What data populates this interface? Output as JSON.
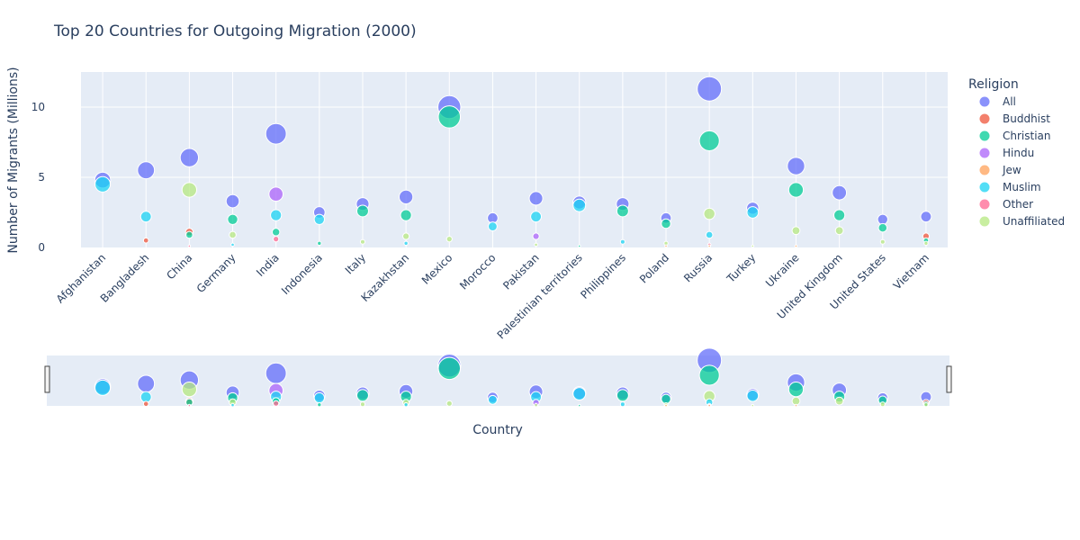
{
  "chart_data": {
    "type": "scatter",
    "title": "Top 20 Countries for Outgoing Migration (2000)",
    "xlabel": "Country",
    "ylabel": "Number of Migrants (Millions)",
    "ylim": [
      0,
      12.5
    ],
    "yticks": [
      0,
      5,
      10
    ],
    "grid": true,
    "legend": {
      "title": "Religion",
      "placement": "right"
    },
    "rangeslider": true,
    "categories": [
      "Afghanistan",
      "Bangladesh",
      "China",
      "Germany",
      "India",
      "Indonesia",
      "Italy",
      "Kazakhstan",
      "Mexico",
      "Morocco",
      "Pakistan",
      "Palestinian territories",
      "Philippines",
      "Poland",
      "Russia",
      "Turkey",
      "Ukraine",
      "United Kingdom",
      "United States",
      "Vietnam"
    ],
    "series": [
      {
        "name": "All",
        "color": "#636efa",
        "values": [
          4.8,
          5.5,
          6.4,
          3.3,
          8.1,
          2.5,
          3.1,
          3.6,
          10.0,
          2.1,
          3.5,
          3.2,
          3.1,
          2.1,
          11.3,
          2.8,
          5.8,
          3.9,
          2.0,
          2.2
        ]
      },
      {
        "name": "Buddhist",
        "color": "#EF553B",
        "values": [
          0,
          0.5,
          1.1,
          0,
          0,
          0,
          0,
          0,
          0,
          0,
          0,
          0,
          0,
          0,
          0,
          0,
          0,
          0,
          0,
          0.8
        ]
      },
      {
        "name": "Christian",
        "color": "#00cc96",
        "values": [
          0,
          0,
          0.9,
          2.0,
          1.1,
          0.3,
          2.6,
          2.3,
          9.3,
          0,
          0,
          0.1,
          2.6,
          1.7,
          7.6,
          0,
          4.1,
          2.3,
          1.4,
          0.5
        ]
      },
      {
        "name": "Hindu",
        "color": "#ab63fa",
        "values": [
          0,
          0,
          0,
          0,
          3.8,
          0,
          0,
          0,
          0,
          0,
          0.8,
          0,
          0,
          0,
          0,
          0,
          0,
          0,
          0,
          0
        ]
      },
      {
        "name": "Jew",
        "color": "#FFA15A",
        "values": [
          0,
          0,
          0,
          0,
          0,
          0,
          0,
          0,
          0,
          0,
          0,
          0,
          0,
          0.1,
          0.1,
          0,
          0.1,
          0,
          0,
          0
        ]
      },
      {
        "name": "Muslim",
        "color": "#19d3f3",
        "values": [
          4.5,
          2.2,
          0,
          0.2,
          2.3,
          2.0,
          0,
          0.3,
          0,
          1.5,
          2.2,
          3.0,
          0.4,
          0,
          0.9,
          2.5,
          0,
          0,
          0,
          0
        ]
      },
      {
        "name": "Other",
        "color": "#FF6692",
        "values": [
          0,
          0,
          0.1,
          0,
          0.6,
          0,
          0,
          0,
          0,
          0,
          0,
          0,
          0,
          0,
          0.2,
          0,
          0,
          0,
          0,
          0
        ]
      },
      {
        "name": "Unaffiliated",
        "color": "#B6E880",
        "values": [
          0,
          0,
          4.1,
          0.9,
          0,
          0,
          0.4,
          0.8,
          0.6,
          0,
          0.2,
          0,
          0,
          0.3,
          2.4,
          0.1,
          1.2,
          1.2,
          0.4,
          0.3
        ]
      }
    ]
  }
}
